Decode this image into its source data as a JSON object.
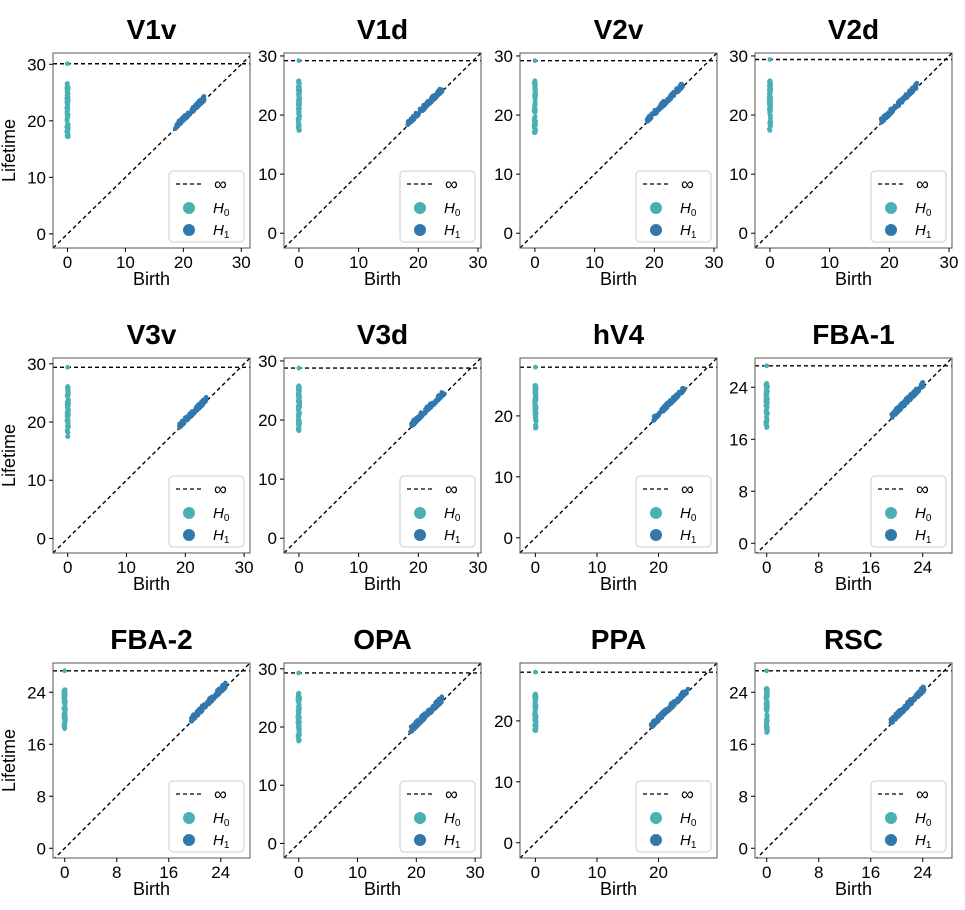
{
  "figure": {
    "shared_ylabel": "Lifetime",
    "shared_xlabel": "Birth",
    "colors": {
      "H0": "#4bb0b3",
      "H1": "#3278ad",
      "diagonal": "#000000",
      "infinity": "#000000",
      "frame": "#555555"
    }
  },
  "chart_data": [
    {
      "type": "scatter",
      "title": "V1v",
      "xlabel": "Birth",
      "ylabel": "Lifetime",
      "xlim": [
        -2.5,
        31.5
      ],
      "ylim": [
        -2.5,
        32
      ],
      "xticks": [
        0,
        10,
        20,
        30
      ],
      "yticks": [
        0,
        10,
        20,
        30
      ],
      "infinity": 30.1,
      "legend_position": "lower-right",
      "legend": [
        "∞",
        "H0",
        "H1"
      ],
      "H0": {
        "birth": 0,
        "lifetime_range": [
          17.2,
          26.6
        ],
        "points": [
          0,
          0,
          0,
          0,
          0,
          0,
          0,
          0,
          0,
          0,
          0,
          0,
          0,
          0,
          0,
          0,
          0,
          0,
          0,
          0,
          0,
          0,
          0,
          0,
          0,
          0,
          0,
          0
        ]
      },
      "H1": {
        "birth_range": [
          18.6,
          23.6
        ],
        "max_excess": 0.8
      }
    },
    {
      "type": "scatter",
      "title": "V1d",
      "xlabel": "Birth",
      "ylabel": "",
      "xlim": [
        -2.5,
        30.5
      ],
      "ylim": [
        -2.5,
        30.5
      ],
      "xticks": [
        0,
        10,
        20,
        30
      ],
      "yticks": [
        0,
        10,
        20,
        30
      ],
      "infinity": 29.2,
      "legend_position": "lower-right",
      "legend": [
        "∞",
        "H0",
        "H1"
      ],
      "H0": {
        "birth": 0,
        "lifetime_range": [
          17.4,
          25.8
        ]
      },
      "H1": {
        "birth_range": [
          18.2,
          24.0
        ],
        "max_excess": 0.8
      }
    },
    {
      "type": "scatter",
      "title": "V2v",
      "xlabel": "Birth",
      "ylabel": "",
      "xlim": [
        -2.5,
        30.5
      ],
      "ylim": [
        -2.5,
        30.5
      ],
      "xticks": [
        0,
        10,
        20,
        30
      ],
      "yticks": [
        0,
        10,
        20,
        30
      ],
      "infinity": 29.2,
      "legend_position": "lower-right",
      "legend": [
        "∞",
        "H0",
        "H1"
      ],
      "H0": {
        "birth": 0,
        "lifetime_range": [
          17.0,
          25.8
        ]
      },
      "H1": {
        "birth_range": [
          18.8,
          24.8
        ],
        "max_excess": 0.8
      }
    },
    {
      "type": "scatter",
      "title": "V2d",
      "xlabel": "Birth",
      "ylabel": "",
      "xlim": [
        -2.5,
        30.5
      ],
      "ylim": [
        -2.5,
        30.5
      ],
      "xticks": [
        0,
        10,
        20,
        30
      ],
      "yticks": [
        0,
        10,
        20,
        30
      ],
      "infinity": 29.4,
      "legend_position": "lower-right",
      "legend": [
        "∞",
        "H0",
        "H1"
      ],
      "H0": {
        "birth": 0,
        "lifetime_range": [
          17.4,
          25.8
        ]
      },
      "H1": {
        "birth_range": [
          18.6,
          24.6
        ],
        "max_excess": 0.8
      }
    },
    {
      "type": "scatter",
      "title": "V3v",
      "xlabel": "Birth",
      "ylabel": "Lifetime",
      "xlim": [
        -2.5,
        31
      ],
      "ylim": [
        -2.5,
        31
      ],
      "xticks": [
        0,
        10,
        20,
        30
      ],
      "yticks": [
        0,
        10,
        20,
        30
      ],
      "infinity": 29.4,
      "legend_position": "lower-right",
      "legend": [
        "∞",
        "H0",
        "H1"
      ],
      "H0": {
        "birth": 0,
        "lifetime_range": [
          17.5,
          26.1
        ]
      },
      "H1": {
        "birth_range": [
          19.0,
          23.6
        ],
        "max_excess": 0.8
      }
    },
    {
      "type": "scatter",
      "title": "V3d",
      "xlabel": "Birth",
      "ylabel": "",
      "xlim": [
        -2.5,
        30.5
      ],
      "ylim": [
        -2.5,
        30.5
      ],
      "xticks": [
        0,
        10,
        20,
        30
      ],
      "yticks": [
        0,
        10,
        20,
        30
      ],
      "infinity": 28.8,
      "legend_position": "lower-right",
      "legend": [
        "∞",
        "H0",
        "H1"
      ],
      "H0": {
        "birth": 0,
        "lifetime_range": [
          18.2,
          25.8
        ]
      },
      "H1": {
        "birth_range": [
          18.8,
          24.4
        ],
        "max_excess": 0.8
      }
    },
    {
      "type": "scatter",
      "title": "hV4",
      "xlabel": "Birth",
      "ylabel": "",
      "xlim": [
        -2.5,
        29.5
      ],
      "ylim": [
        -2.5,
        29.5
      ],
      "xticks": [
        0,
        10,
        20
      ],
      "yticks": [
        0,
        10,
        20
      ],
      "infinity": 28.0,
      "legend_position": "lower-right",
      "legend": [
        "∞",
        "H0",
        "H1"
      ],
      "H0": {
        "birth": 0,
        "lifetime_range": [
          18.0,
          25.0
        ]
      },
      "H1": {
        "birth_range": [
          19.2,
          24.2
        ],
        "max_excess": 0.7
      }
    },
    {
      "type": "scatter",
      "title": "FBA-1",
      "xlabel": "Birth",
      "ylabel": "",
      "xlim": [
        -1.8,
        28.5
      ],
      "ylim": [
        -1.5,
        28.5
      ],
      "xticks": [
        0,
        8,
        16,
        24
      ],
      "yticks": [
        0,
        8,
        16,
        24
      ],
      "infinity": 27.3,
      "legend_position": "lower-right",
      "legend": [
        "∞",
        "H0",
        "H1"
      ],
      "H0": {
        "birth": 0,
        "lifetime_range": [
          17.8,
          24.6
        ]
      },
      "H1": {
        "birth_range": [
          19.2,
          24.2
        ],
        "max_excess": 0.8
      }
    },
    {
      "type": "scatter",
      "title": "FBA-2",
      "xlabel": "Birth",
      "ylabel": "Lifetime",
      "xlim": [
        -1.8,
        28.5
      ],
      "ylim": [
        -1.5,
        28.5
      ],
      "xticks": [
        0,
        8,
        16,
        24
      ],
      "yticks": [
        0,
        8,
        16,
        24
      ],
      "infinity": 27.3,
      "legend_position": "lower-right",
      "legend": [
        "∞",
        "H0",
        "H1"
      ],
      "H0": {
        "birth": 0,
        "lifetime_range": [
          18.4,
          24.4
        ]
      },
      "H1": {
        "birth_range": [
          19.4,
          24.8
        ],
        "max_excess": 0.8
      }
    },
    {
      "type": "scatter",
      "title": "OPA",
      "xlabel": "Birth",
      "ylabel": "",
      "xlim": [
        -2.5,
        31
      ],
      "ylim": [
        -2.5,
        31
      ],
      "xticks": [
        0,
        10,
        20,
        30
      ],
      "yticks": [
        0,
        10,
        20,
        30
      ],
      "infinity": 29.3,
      "legend_position": "lower-right",
      "legend": [
        "∞",
        "H0",
        "H1"
      ],
      "H0": {
        "birth": 0,
        "lifetime_range": [
          17.6,
          25.8
        ]
      },
      "H1": {
        "birth_range": [
          19.0,
          24.4
        ],
        "max_excess": 1.0
      }
    },
    {
      "type": "scatter",
      "title": "PPA",
      "xlabel": "Birth",
      "ylabel": "",
      "xlim": [
        -2.5,
        29.5
      ],
      "ylim": [
        -2.5,
        29.5
      ],
      "xticks": [
        0,
        10,
        20
      ],
      "yticks": [
        0,
        10,
        20
      ],
      "infinity": 28.0,
      "legend_position": "lower-right",
      "legend": [
        "∞",
        "H0",
        "H1"
      ],
      "H0": {
        "birth": 0,
        "lifetime_range": [
          18.4,
          24.4
        ]
      },
      "H1": {
        "birth_range": [
          18.8,
          24.8
        ],
        "max_excess": 0.8
      }
    },
    {
      "type": "scatter",
      "title": "RSC",
      "xlabel": "Birth",
      "ylabel": "",
      "xlim": [
        -1.8,
        28.5
      ],
      "ylim": [
        -1.5,
        28.5
      ],
      "xticks": [
        0,
        8,
        16,
        24
      ],
      "yticks": [
        0,
        8,
        16,
        24
      ],
      "infinity": 27.3,
      "legend_position": "lower-right",
      "legend": [
        "∞",
        "H0",
        "H1"
      ],
      "H0": {
        "birth": 0,
        "lifetime_range": [
          17.8,
          24.6
        ]
      },
      "H1": {
        "birth_range": [
          19.0,
          24.2
        ],
        "max_excess": 0.8
      }
    }
  ]
}
